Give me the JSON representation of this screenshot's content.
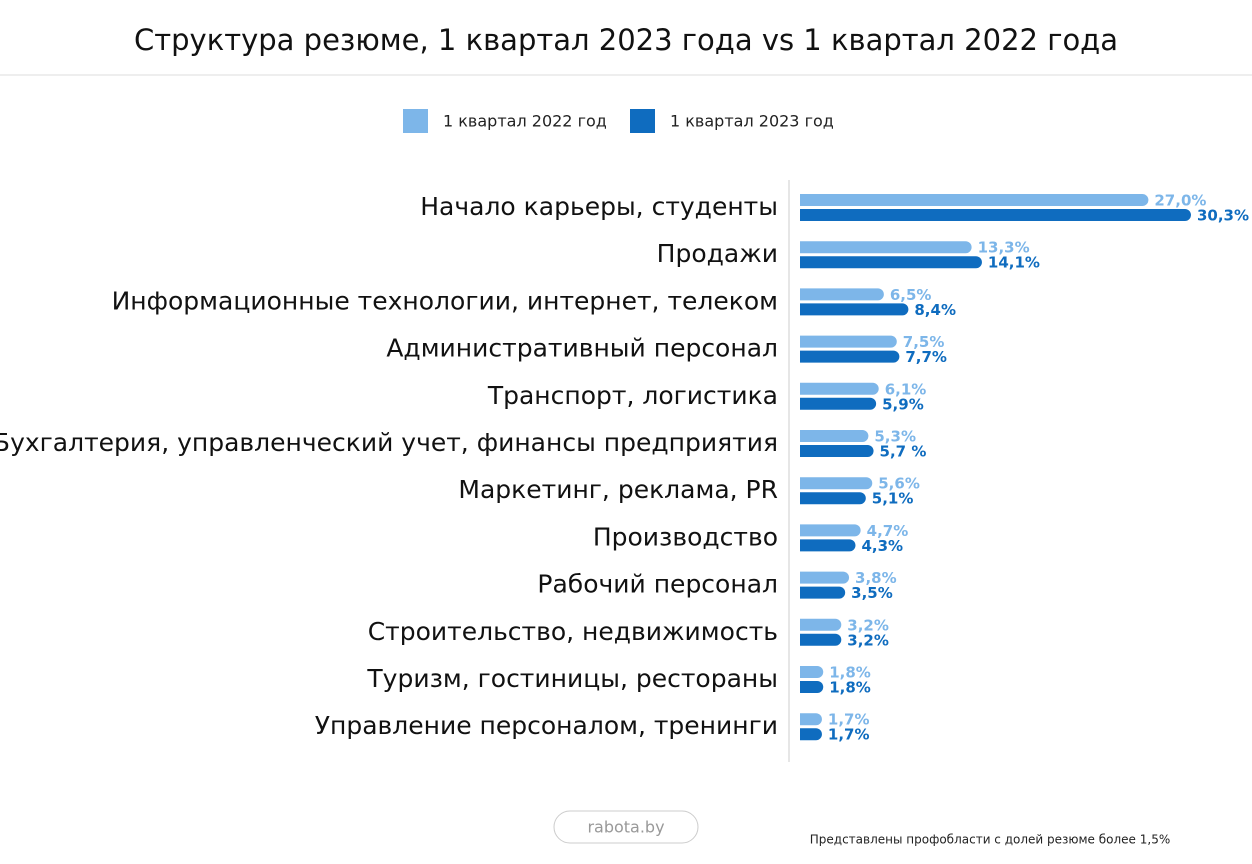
{
  "chart_data": {
    "type": "bar",
    "orientation": "horizontal",
    "title": "Структура резюме, 1 квартал 2023 года vs 1 квартал 2022 года",
    "categories": [
      "Начало карьеры, студенты",
      "Продажи",
      "Информационные технологии, интернет, телеком",
      "Административный персонал",
      "Транспорт, логистика",
      "Бухгалтерия, управленческий учет, финансы предприятия",
      "Маркетинг, реклама, PR",
      "Производство",
      "Рабочий персонал",
      "Строительство, недвижимость",
      "Туризм, гостиницы, рестораны",
      "Управление персоналом, тренинги"
    ],
    "series": [
      {
        "name": "1 квартал 2022 год",
        "color": "#7db6e9",
        "values": [
          27.0,
          13.3,
          6.5,
          7.5,
          6.1,
          5.3,
          5.6,
          4.7,
          3.8,
          3.2,
          1.8,
          1.7
        ],
        "value_labels": [
          "27,0%",
          "13,3%",
          "6,5%",
          "7,5%",
          "6,1%",
          "5,3%",
          "5,6%",
          "4,7%",
          "3,8%",
          "3,2%",
          "1,8%",
          "1,7%"
        ]
      },
      {
        "name": "1 квартал 2023 год",
        "color": "#0f6cbf",
        "values": [
          30.3,
          14.1,
          8.4,
          7.7,
          5.9,
          5.7,
          5.1,
          4.3,
          3.5,
          3.2,
          1.8,
          1.7
        ],
        "value_labels": [
          "30,3%",
          "14,1%",
          "8,4%",
          "7,7%",
          "5,9%",
          "5,7 %",
          "5,1%",
          "4,3%",
          "3,5%",
          "3,2%",
          "1,8%",
          "1,7%"
        ]
      }
    ],
    "xlim": [
      0,
      31
    ],
    "source": "rabota.by",
    "note": "Представлены профобласти с долей резюме более 1,5%"
  }
}
